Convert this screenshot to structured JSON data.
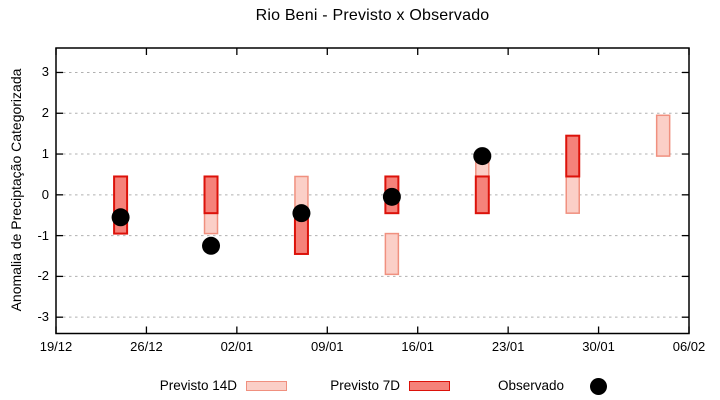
{
  "chart_data": {
    "type": "bar",
    "subtype": "floating-range-bars-with-observed-dots",
    "title": "Rio Beni - Previsto x Observado",
    "ylabel": "Anomalia de Preciptação Categorizada",
    "xlabel": "",
    "ylim": [
      -3.4,
      3.6
    ],
    "y_ticks": [
      3,
      2,
      1,
      0,
      -1,
      -2,
      -3
    ],
    "x_tick_labels": [
      "19/12",
      "26/12",
      "02/01",
      "09/01",
      "16/01",
      "23/01",
      "30/01",
      "06/02"
    ],
    "x_axis": {
      "days_span": 49,
      "tick_days": [
        0,
        7,
        14,
        21,
        28,
        35,
        42,
        49
      ],
      "date_offsets": {
        "24/12": 5,
        "31/12": 12,
        "07/01": 19,
        "14/01": 26,
        "21/01": 33,
        "28/01": 40,
        "04/02": 47
      }
    },
    "grid": "horizontal-dashed",
    "grid_color": "#b0b0b0",
    "axis_color": "#000000",
    "legend_position": "bottom-center",
    "series": [
      {
        "name": "Previsto 14D",
        "type": "range-bar",
        "fill": "#fbcfc7",
        "border": "#f0907f",
        "points": [
          {
            "date": "31/12",
            "low": -0.95,
            "high": 0.45
          },
          {
            "date": "07/01",
            "low": -0.45,
            "high": 0.45
          },
          {
            "date": "14/01",
            "low": -1.95,
            "high": -0.95
          },
          {
            "date": "21/01",
            "low": 0.45,
            "high": 0.95
          },
          {
            "date": "28/01",
            "low": -0.45,
            "high": 0.45
          },
          {
            "date": "04/02",
            "low": 0.95,
            "high": 1.95
          }
        ]
      },
      {
        "name": "Previsto 7D",
        "type": "range-bar",
        "fill": "#f5827a",
        "border": "#dc120a",
        "points": [
          {
            "date": "24/12",
            "low": -0.95,
            "high": 0.45
          },
          {
            "date": "31/12",
            "low": -0.45,
            "high": 0.45
          },
          {
            "date": "07/01",
            "low": -1.45,
            "high": -0.45
          },
          {
            "date": "14/01",
            "low": -0.45,
            "high": 0.45
          },
          {
            "date": "21/01",
            "low": -0.45,
            "high": 0.45
          },
          {
            "date": "28/01",
            "low": 0.45,
            "high": 1.45
          }
        ]
      },
      {
        "name": "Observado",
        "type": "scatter",
        "fill": "#000000",
        "points": [
          {
            "date": "24/12",
            "value": -0.55
          },
          {
            "date": "31/12",
            "value": -1.25
          },
          {
            "date": "07/01",
            "value": -0.45
          },
          {
            "date": "14/01",
            "value": -0.05
          },
          {
            "date": "21/01",
            "value": 0.95
          }
        ]
      }
    ]
  },
  "legend": {
    "items": [
      {
        "label": "Previsto 14D",
        "symbol": "range-14d",
        "series_ref": 0
      },
      {
        "label": "Previsto 7D",
        "symbol": "range-7d",
        "series_ref": 1
      },
      {
        "label": "Observado",
        "symbol": "dot",
        "series_ref": 2
      }
    ]
  }
}
